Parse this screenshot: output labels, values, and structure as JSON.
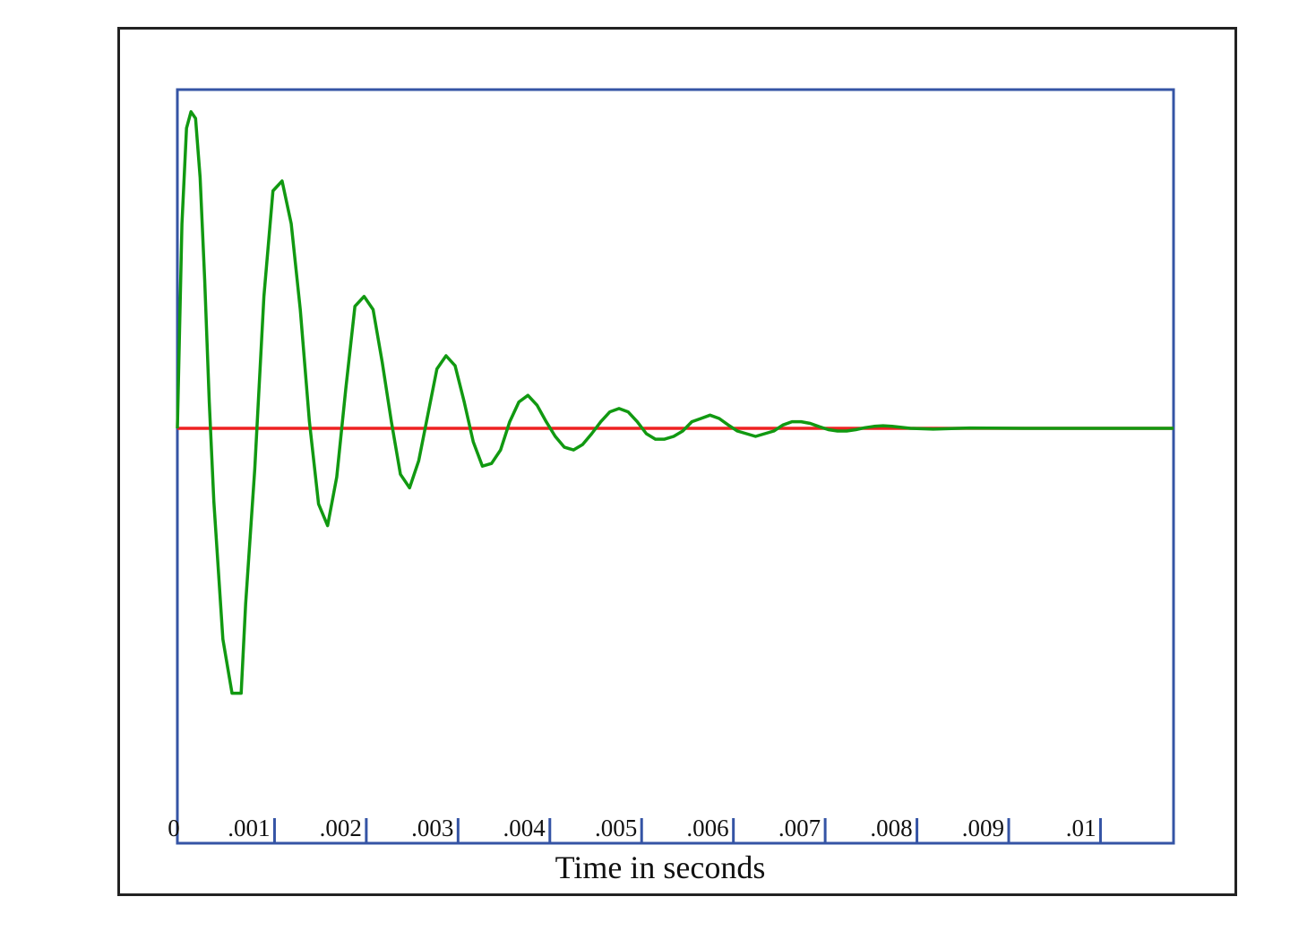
{
  "chart_data": {
    "type": "line",
    "title": "",
    "xlabel": "Time in seconds",
    "ylabel": "",
    "xlim": [
      0,
      0.01094
    ],
    "ylim": [
      -1.09,
      1.0
    ],
    "grid": false,
    "legend": "none",
    "x_ticks": [
      {
        "value": 0,
        "label": "0"
      },
      {
        "value": 0.001,
        "label": ".001"
      },
      {
        "value": 0.002,
        "label": ".002"
      },
      {
        "value": 0.003,
        "label": ".003"
      },
      {
        "value": 0.004,
        "label": ".004"
      },
      {
        "value": 0.005,
        "label": ".005"
      },
      {
        "value": 0.006,
        "label": ".006"
      },
      {
        "value": 0.007,
        "label": ".007"
      },
      {
        "value": 0.008,
        "label": ".008"
      },
      {
        "value": 0.009,
        "label": ".009"
      },
      {
        "value": 0.01,
        "label": ".01"
      }
    ],
    "colors": {
      "frame": "#222222",
      "plot_border": "#3554a5",
      "reference_line": "#ee2222",
      "signal": "#119911"
    },
    "series": [
      {
        "x": [
          0,
          0.01094
        ],
        "y": [
          0,
          0
        ]
      },
      {
        "x": [
          0,
          5e-05,
          0.0001,
          0.00015,
          0.0002,
          0.00025,
          0.0003,
          0.00035,
          0.0004,
          0.0005,
          0.0006,
          0.0007,
          0.00075,
          0.00085,
          0.00095,
          0.00105,
          0.00115,
          0.00125,
          0.00135,
          0.00145,
          0.00155,
          0.00165,
          0.00175,
          0.00185,
          0.00195,
          0.00205,
          0.00215,
          0.00225,
          0.00235,
          0.00245,
          0.00255,
          0.00265,
          0.00275,
          0.00285,
          0.00295,
          0.00305,
          0.00315,
          0.00325,
          0.00335,
          0.00345,
          0.00355,
          0.00365,
          0.00375,
          0.00385,
          0.00395,
          0.00405,
          0.00415,
          0.00425,
          0.00435,
          0.00445,
          0.00455,
          0.00465,
          0.00475,
          0.00485,
          0.00495,
          0.00505,
          0.00515,
          0.00525,
          0.00535,
          0.00545,
          0.00555,
          0.00565,
          0.00575,
          0.00585,
          0.00595,
          0.00605,
          0.00615,
          0.00625,
          0.00635,
          0.00645,
          0.00655,
          0.00665,
          0.00675,
          0.00685,
          0.00695,
          0.00705,
          0.00715,
          0.00725,
          0.00735,
          0.00745,
          0.00755,
          0.00765,
          0.00775,
          0.00785,
          0.00795,
          0.00805,
          0.0083,
          0.0087,
          0.0093,
          0.01,
          0.01094
        ],
        "y": [
          0,
          0.62,
          0.91,
          0.96,
          0.94,
          0.76,
          0.45,
          0.08,
          -0.27,
          -0.78,
          -0.98,
          -0.98,
          -0.65,
          -0.15,
          0.4,
          0.72,
          0.75,
          0.62,
          0.36,
          0.02,
          -0.28,
          -0.36,
          -0.18,
          0.12,
          0.37,
          0.4,
          0.36,
          0.2,
          0.02,
          -0.17,
          -0.22,
          -0.12,
          0.04,
          0.18,
          0.22,
          0.19,
          0.08,
          -0.05,
          -0.14,
          -0.13,
          -0.08,
          0.02,
          0.08,
          0.1,
          0.07,
          0.02,
          -0.03,
          -0.07,
          -0.08,
          -0.06,
          -0.02,
          0.02,
          0.05,
          0.06,
          0.05,
          0.02,
          -0.02,
          -0.04,
          -0.04,
          -0.03,
          -0.01,
          0.02,
          0.03,
          0.04,
          0.03,
          0.01,
          -0.01,
          -0.02,
          -0.03,
          -0.02,
          -0.01,
          0.01,
          0.02,
          0.02,
          0.015,
          0.005,
          -0.005,
          -0.01,
          -0.01,
          -0.005,
          0.002,
          0.006,
          0.008,
          0.006,
          0.003,
          0,
          -0.003,
          0.001,
          0,
          0,
          0
        ]
      }
    ]
  }
}
